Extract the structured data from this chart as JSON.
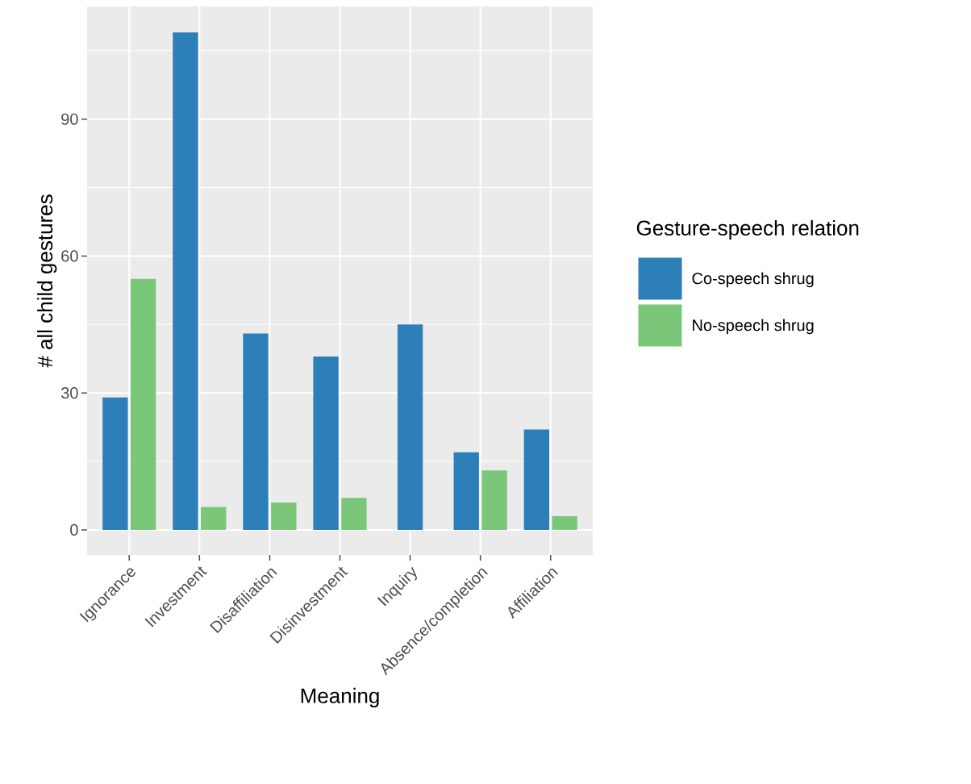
{
  "chart_data": {
    "type": "bar",
    "xlabel": "Meaning",
    "ylabel": "# all child gestures",
    "legend_title": "Gesture-speech relation",
    "categories": [
      "Ignorance",
      "Investment",
      "Disaffiliation",
      "Disinvestment",
      "Inquiry",
      "Absence/completion",
      "Affiliation"
    ],
    "series": [
      {
        "name": "Co-speech shrug",
        "color": "#2c7fb8",
        "values": [
          29,
          109,
          43,
          38,
          45,
          17,
          22
        ]
      },
      {
        "name": "No-speech shrug",
        "color": "#7bc77a",
        "values": [
          55,
          5,
          6,
          7,
          null,
          13,
          3
        ]
      }
    ],
    "ylim": [
      -5.5,
      114.7
    ],
    "yticks": [
      0,
      30,
      60,
      90
    ],
    "grid": true,
    "legend": "right"
  }
}
